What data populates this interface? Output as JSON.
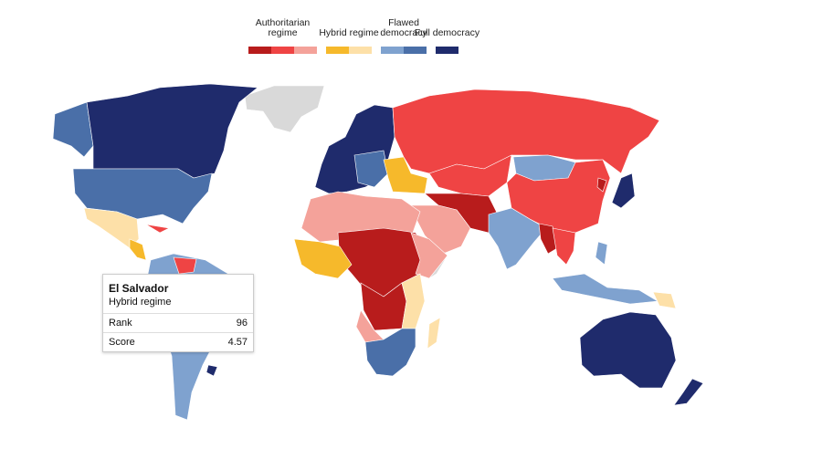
{
  "legend": [
    {
      "label": "Authoritarian regime",
      "colors": [
        "#b81c1c",
        "#ef4444",
        "#f4a29a"
      ]
    },
    {
      "label": "Hybrid regime",
      "colors": [
        "#f6b92b",
        "#fde0a8"
      ]
    },
    {
      "label": "Flawed democracy",
      "colors": [
        "#7fa2cf",
        "#4a6fa8"
      ]
    },
    {
      "label": "Full democracy",
      "colors": [
        "#1f2b6c"
      ]
    }
  ],
  "tooltip": {
    "country": "El Salvador",
    "regime": "Hybrid regime",
    "rows": [
      {
        "label": "Rank",
        "value": 96
      },
      {
        "label": "Score",
        "value": 4.57
      }
    ]
  }
}
